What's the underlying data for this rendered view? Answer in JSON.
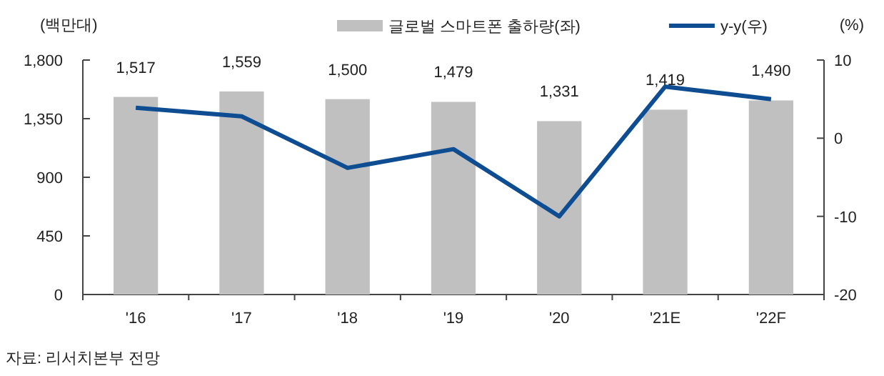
{
  "chart_data": {
    "type": "bar",
    "categories": [
      "'16",
      "'17",
      "'18",
      "'19",
      "'20",
      "'21E",
      "'22F"
    ],
    "ylabel": "(백만대)",
    "y2label": "(%)",
    "series": [
      {
        "name": "글로벌 스마트폰 출하량(좌)",
        "color": "#c0c0c0",
        "values": [
          1517,
          1559,
          1500,
          1479,
          1331,
          1419,
          1490
        ],
        "value_labels": [
          "1,517",
          "1,559",
          "1,500",
          "1,479",
          "1,331",
          "1,419",
          "1,490"
        ]
      },
      {
        "name": "y-y(우)",
        "type": "line",
        "axis": "y2",
        "color": "#0e4d92",
        "values": [
          3.9,
          2.8,
          -3.8,
          -1.4,
          -10.0,
          6.6,
          5.0
        ]
      }
    ],
    "ylim": [
      0,
      1800
    ],
    "yticks": [
      0,
      {
        "value": 450,
        "label": "450"
      },
      {
        "value": 900,
        "label": "900"
      },
      {
        "value": 1350,
        "label": "1,350"
      },
      {
        "value": 1800,
        "label": "1,800"
      }
    ],
    "y2lim": [
      -20,
      10
    ],
    "y2ticks": [
      -20,
      -10,
      0,
      10
    ],
    "legend": "top right",
    "marker": "none",
    "line_style": "solid",
    "annotations": [
      "자료: 리서치본부 전망"
    ]
  }
}
